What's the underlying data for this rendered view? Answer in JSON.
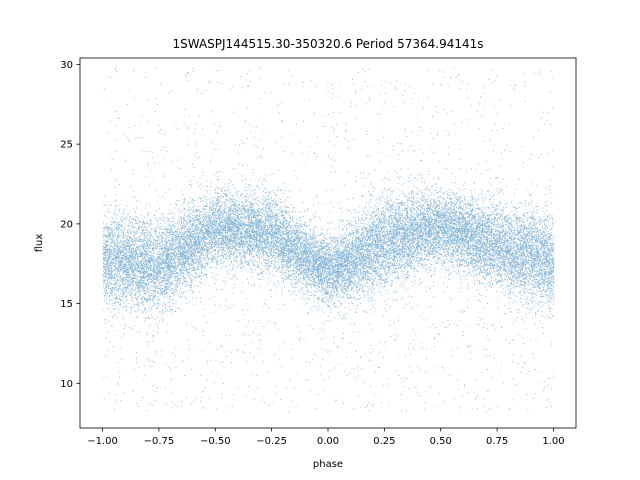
{
  "chart_data": {
    "type": "scatter",
    "title": "1SWASPJ144515.30-350320.6 Period 57364.94141s",
    "xlabel": "phase",
    "ylabel": "flux",
    "xlim": [
      -1.1,
      1.1
    ],
    "ylim": [
      7.2,
      30.4
    ],
    "xticks": [
      -1.0,
      -0.75,
      -0.5,
      -0.25,
      0.0,
      0.25,
      0.5,
      0.75,
      1.0
    ],
    "xtick_labels": [
      "−1.00",
      "−0.75",
      "−0.50",
      "−0.25",
      "0.00",
      "0.25",
      "0.50",
      "0.75",
      "1.00"
    ],
    "yticks": [
      10,
      15,
      20,
      25,
      30
    ],
    "ytick_labels": [
      "10",
      "15",
      "20",
      "25",
      "30"
    ],
    "grid": false,
    "point_color": "#1f77b4",
    "series": [
      {
        "phase_range": [
          -1.0,
          1.0
        ],
        "flux_range": [
          8.2,
          29.8
        ],
        "profile": {
          "phase": [
            -1.0,
            -0.75,
            -0.5,
            -0.25,
            0.0,
            0.25,
            0.5,
            0.75,
            1.0
          ],
          "flux_center": [
            17.8,
            17.3,
            19.7,
            19.4,
            17.0,
            18.9,
            19.9,
            18.6,
            17.6
          ],
          "band_half_width": [
            2.6,
            2.6,
            2.0,
            2.2,
            1.8,
            2.6,
            2.0,
            2.4,
            2.6
          ]
        }
      }
    ]
  }
}
